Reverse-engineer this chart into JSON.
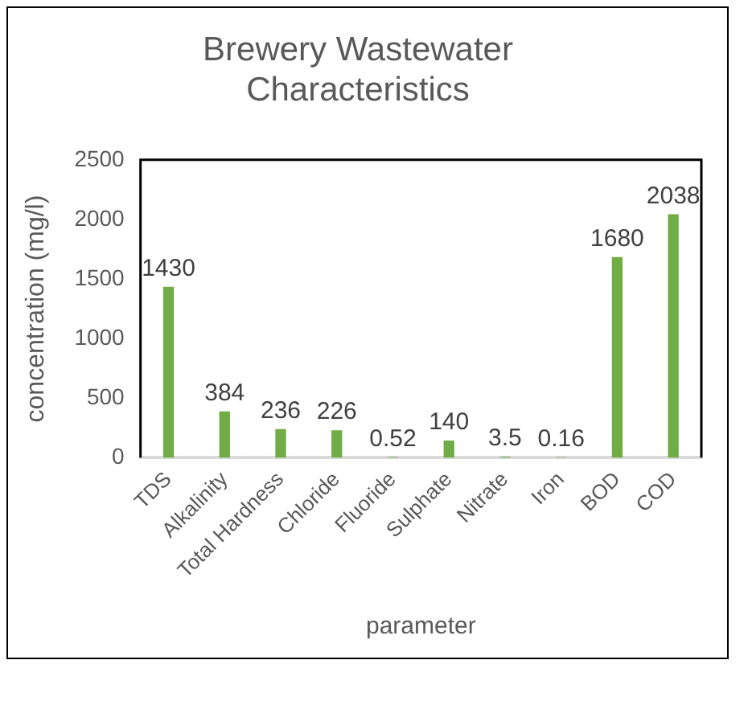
{
  "chart_data": {
    "type": "bar",
    "title": "Brewery Wastewater Characteristics",
    "xlabel": "parameter",
    "ylabel": "concentration (mg/l)",
    "categories": [
      "TDS",
      "Alkalinity",
      "Total Hardness",
      "Chloride",
      "Fluoride",
      "Sulphate",
      "Nitrate",
      "Iron",
      "BOD",
      "COD"
    ],
    "values": [
      1430,
      384,
      236,
      226,
      0.52,
      140,
      3.5,
      0.16,
      1680,
      2038
    ],
    "color": "#70ad47",
    "ylim": [
      0,
      2500
    ],
    "yticks": [
      0,
      500,
      1000,
      1500,
      2000,
      2500
    ],
    "data_labels": true,
    "grid": false,
    "legend": false
  }
}
